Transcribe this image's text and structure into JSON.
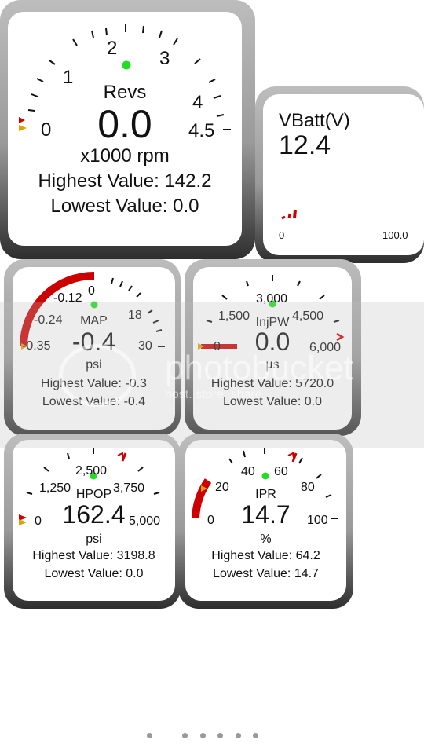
{
  "revs": {
    "label": "Revs",
    "value": "0.0",
    "unit": "x1000 rpm",
    "highest": "Highest Value: 142.2",
    "lowest": "Lowest Value: 0.0",
    "scale": [
      "0",
      "1",
      "2",
      "3",
      "4",
      "4.5"
    ]
  },
  "vbatt": {
    "label": "VBatt(V)",
    "value": "12.4",
    "min": "0",
    "max": "100.0"
  },
  "map": {
    "label": "MAP",
    "value": "-0.4",
    "unit": "psi",
    "highest": "Highest Value: -0.3",
    "lowest": "Lowest Value: -0.4",
    "scale": [
      "-0.35",
      "-0.24",
      "-0.12",
      "0",
      "18",
      "30"
    ]
  },
  "injpw": {
    "label": "InjPW",
    "value": "0.0",
    "unit": "µs",
    "highest": "Highest Value: 5720.0",
    "lowest": "Lowest Value: 0.0",
    "scale": [
      "0",
      "1,500",
      "3,000",
      "4,500",
      "6,000"
    ]
  },
  "hpop": {
    "label": "HPOP",
    "value": "162.4",
    "unit": "psi",
    "highest": "Highest Value: 3198.8",
    "lowest": "Lowest Value: 0.0",
    "scale": [
      "0",
      "1,250",
      "2,500",
      "3,750",
      "5,000"
    ]
  },
  "ipr": {
    "label": "IPR",
    "value": "14.7",
    "unit": "%",
    "highest": "Highest Value: 64.2",
    "lowest": "Lowest Value: 14.7",
    "scale": [
      "0",
      "20",
      "40",
      "60",
      "80",
      "100"
    ]
  },
  "watermark": {
    "brand": "photobucket",
    "tagline": "host. store. share."
  },
  "colors": {
    "needle": "#cc0000",
    "indicator": "#22dd22",
    "marker": "#e0a000"
  },
  "pager": {
    "dots": 6,
    "active": 0
  }
}
